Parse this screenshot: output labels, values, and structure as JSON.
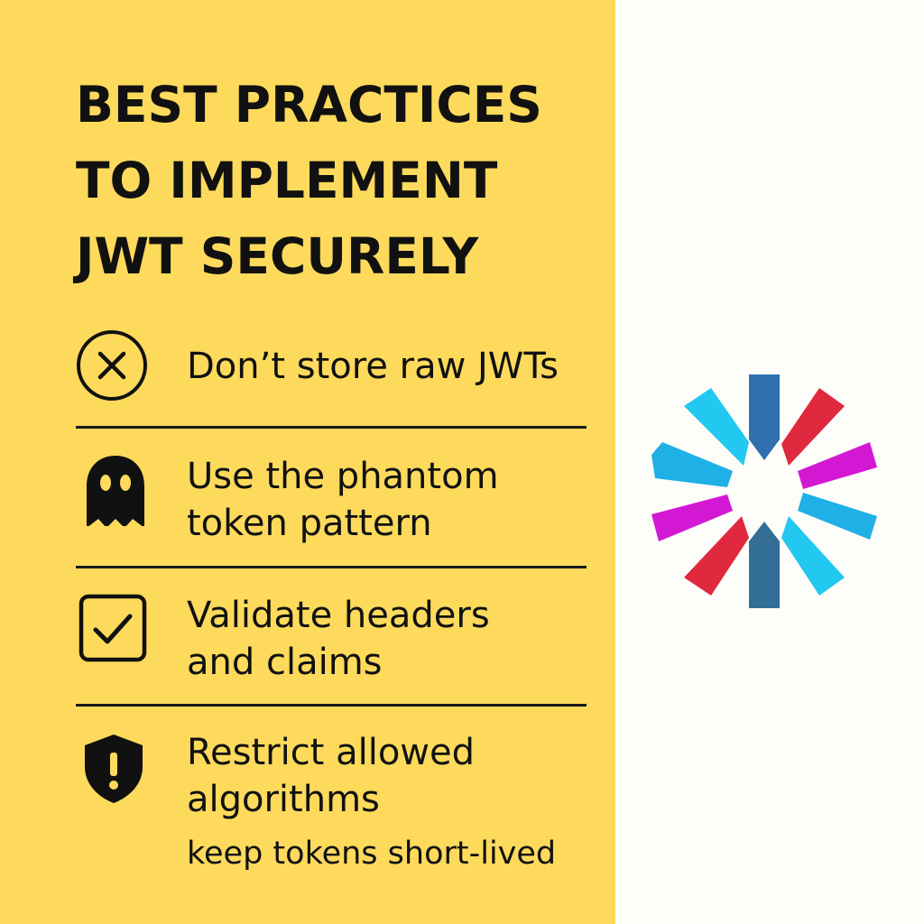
{
  "title": {
    "lines": [
      "BEST PRACTICES",
      "TO IMPLEMENT",
      "JWT SECURELY"
    ]
  },
  "items": [
    {
      "icon": "x-circle-icon",
      "lines": [
        "Don’t store raw JWTs"
      ]
    },
    {
      "icon": "ghost-icon",
      "lines": [
        "Use the phantom",
        "token pattern"
      ]
    },
    {
      "icon": "checkbox-icon",
      "lines": [
        "Validate headers",
        "and claims"
      ]
    },
    {
      "icon": "shield-alert-icon",
      "lines": [
        "Restrict allowed",
        "algorithms"
      ]
    }
  ],
  "note": "keep tokens short-lived",
  "logo": {
    "icon": "jwt-logo-icon",
    "colors": [
      "#2f6fb0",
      "#e0283f",
      "#d318d3",
      "#1fb0e6",
      "#22c8f0"
    ]
  },
  "colors": {
    "left_panel": "#fdda5c",
    "right_panel": "#fdfdf9",
    "text": "#111111"
  }
}
